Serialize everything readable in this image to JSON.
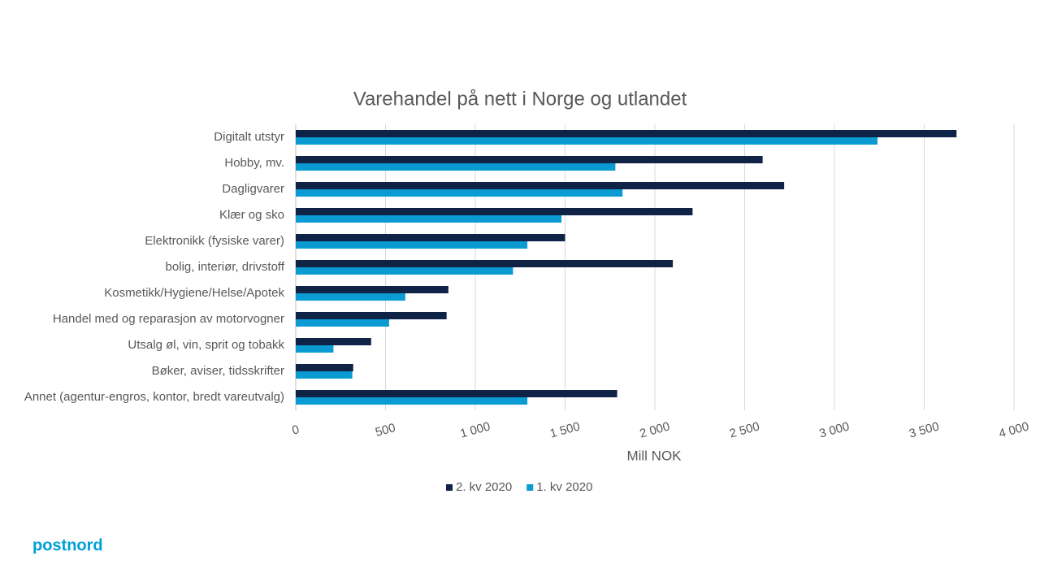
{
  "chart_data": {
    "type": "hbar",
    "title": "Varehandel på nett i Norge og utlandet",
    "x_label": "Mill NOK",
    "categories": [
      "Digitalt utstyr",
      "Hobby, mv.",
      "Dagligvarer",
      "Klær og sko",
      "Elektronikk (fysiske varer)",
      "bolig, interiør, drivstoff",
      "Kosmetikk/Hygiene/Helse/Apotek",
      "Handel med og reparasjon av motorvogner",
      "Utsalg øl, vin, sprit og tobakk",
      "Bøker, aviser, tidsskrifter",
      "Annet (agentur-engros, kontor, bredt vareutvalg)"
    ],
    "series": [
      {
        "name": "2. kv 2020",
        "color": "#0f2347",
        "values": [
          3680,
          2600,
          2720,
          2210,
          1500,
          2100,
          850,
          840,
          420,
          320,
          1790
        ]
      },
      {
        "name": "1. kv 2020",
        "color": "#0a9bd3",
        "values": [
          3240,
          1780,
          1820,
          1480,
          1290,
          1210,
          610,
          520,
          210,
          315,
          1290
        ]
      }
    ],
    "xlim": [
      0,
      4000
    ],
    "xticks": [
      0,
      500,
      {
        "value": 1000,
        "label": "1 000"
      },
      {
        "value": 1500,
        "label": "1 500"
      },
      {
        "value": 2000,
        "label": "2 000"
      },
      {
        "value": 2500,
        "label": "2 500"
      },
      {
        "value": 3000,
        "label": "3 000"
      },
      {
        "value": 3500,
        "label": "3 500"
      },
      {
        "value": 4000,
        "label": "4 000"
      }
    ],
    "grid": true,
    "legend": "bottom"
  },
  "logo": "postnord"
}
